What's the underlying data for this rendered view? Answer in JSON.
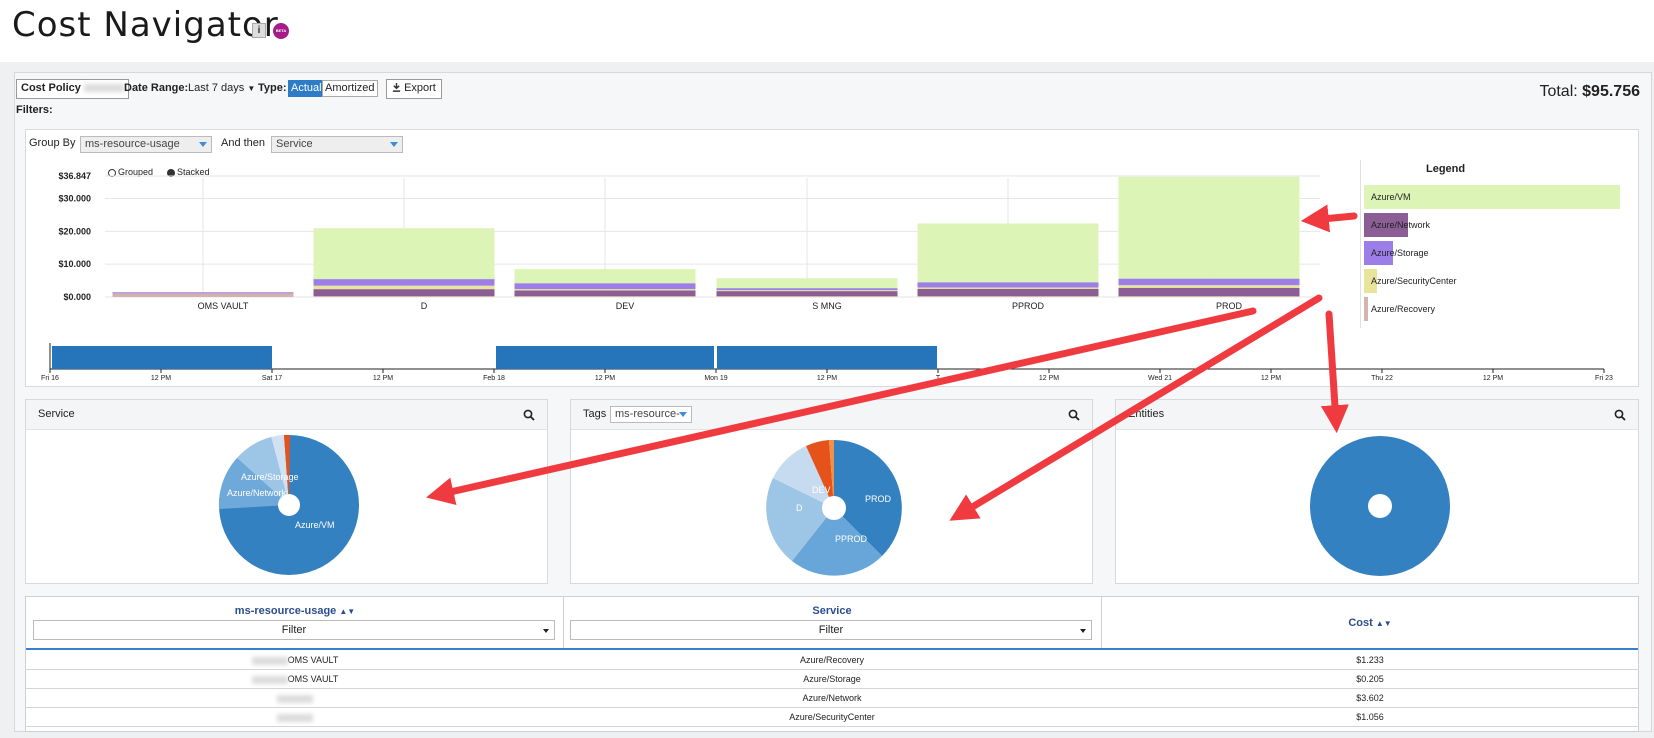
{
  "header": {
    "title": "Cost Navigator",
    "info_icon": "i",
    "beta_label": "BETA"
  },
  "toolbar": {
    "cost_policy_label": "Cost Policy",
    "date_range_label": "Date Range:",
    "date_range_value": "Last 7 days",
    "type_label": "Type:",
    "type_actual": "Actual",
    "type_amortized": "Amortized",
    "export_label": "Export",
    "filters_label": "Filters:",
    "total_label": "Total:",
    "total_value": "$95.756"
  },
  "controls": {
    "group_by_label": "Group By",
    "group_by_value": "ms-resource-usage",
    "and_then_label": "And then",
    "and_then_value": "Service",
    "grouped_label": "Grouped",
    "stacked_label": "Stacked"
  },
  "legend": {
    "title": "Legend",
    "items": [
      {
        "label": "Azure/VM",
        "color": "#dcf5b6"
      },
      {
        "label": "Azure/Network",
        "color": "#8b5e96"
      },
      {
        "label": "Azure/Storage",
        "color": "#9d7ee8"
      },
      {
        "label": "Azure/SecurityCenter",
        "color": "#e8e59a"
      },
      {
        "label": "Azure/Recovery",
        "color": "#d4b2ae"
      }
    ]
  },
  "chart_data": {
    "type": "bar",
    "stacked": true,
    "y_ticks": [
      "$36.847",
      "$30.000",
      "$20.000",
      "$10.000",
      "$0.000"
    ],
    "ylim": [
      0,
      36.847
    ],
    "categories": [
      "OMS VAULT",
      "D",
      "DEV",
      "S MNG",
      "PPROD",
      "PROD"
    ],
    "series": [
      {
        "name": "Azure/Recovery",
        "color": "#d4b2ae",
        "values": [
          1.233,
          0.3,
          0.3,
          0.3,
          0.3,
          0.3
        ]
      },
      {
        "name": "Azure/Network",
        "color": "#8b5e96",
        "values": [
          0,
          2.1,
          1.7,
          1.5,
          2.2,
          2.5
        ]
      },
      {
        "name": "Azure/SecurityCenter",
        "color": "#e8e59a",
        "values": [
          0,
          1.056,
          0.4,
          0.3,
          0.4,
          0.8
        ]
      },
      {
        "name": "Azure/Storage",
        "color": "#9d7ee8",
        "values": [
          0.205,
          2.0,
          1.8,
          0.6,
          1.6,
          2.0
        ]
      },
      {
        "name": "Azure/VM",
        "color": "#dcf5b6",
        "values": [
          0,
          15.5,
          4.3,
          3.0,
          17.9,
          31.0
        ]
      }
    ]
  },
  "timeline": {
    "ticks": [
      "Fri 16",
      "12 PM",
      "Sat 17",
      "12 PM",
      "Feb 18",
      "12 PM",
      "Mon 19",
      "12 PM",
      "T",
      "12 PM",
      "Wed 21",
      "12 PM",
      "Thu 22",
      "12 PM",
      "Fri 23"
    ]
  },
  "cards": {
    "service": {
      "title": "Service",
      "labels": [
        "Azure/Storage",
        "Azure/Network",
        "Azure/VM"
      ]
    },
    "tags": {
      "title": "Tags",
      "select_value": "ms-resource-",
      "labels": [
        "DEV",
        "PROD",
        "D",
        "PPROD"
      ]
    },
    "entities": {
      "title": "Entities"
    }
  },
  "table": {
    "headers": {
      "col1": "ms-resource-usage",
      "col2": "Service",
      "col3": "Cost"
    },
    "filter_label": "Filter",
    "rows": [
      {
        "resource": "OMS VAULT",
        "service": "Azure/Recovery",
        "cost": "$1.233"
      },
      {
        "resource": "OMS VAULT",
        "service": "Azure/Storage",
        "cost": "$0.205"
      },
      {
        "resource": "",
        "service": "Azure/Network",
        "cost": "$3.602"
      },
      {
        "resource": "",
        "service": "Azure/SecurityCenter",
        "cost": "$1.056"
      }
    ]
  }
}
